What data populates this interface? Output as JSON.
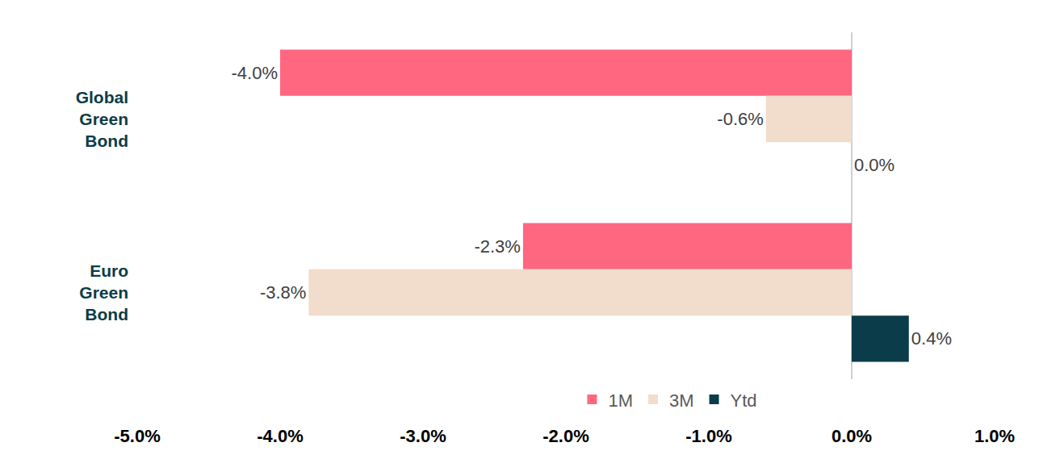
{
  "chart_data": {
    "type": "bar",
    "orientation": "horizontal",
    "categories": [
      "Global Green Bond",
      "Euro Green Bond"
    ],
    "series": [
      {
        "name": "1M",
        "color": "#FF6680",
        "values": [
          -4.0,
          -2.3
        ],
        "value_labels": [
          "-4.0%",
          "-2.3%"
        ]
      },
      {
        "name": "3M",
        "color": "#F2DCCB",
        "values": [
          -0.6,
          -3.8
        ],
        "value_labels": [
          "-0.6%",
          "-3.8%"
        ]
      },
      {
        "name": "Ytd",
        "color": "#0B3C49",
        "values": [
          0.0,
          0.4
        ],
        "value_labels": [
          "0.0%",
          "0.4%"
        ]
      }
    ],
    "xlim": [
      -5,
      1
    ],
    "xticks": [
      {
        "value": -5,
        "label": "-5.0%"
      },
      {
        "value": -4,
        "label": "-4.0%"
      },
      {
        "value": -3,
        "label": "-3.0%"
      },
      {
        "value": -2,
        "label": "-2.0%"
      },
      {
        "value": -1,
        "label": "-1.0%"
      },
      {
        "value": 0,
        "label": "0.0%"
      },
      {
        "value": 1,
        "label": "1.0%"
      }
    ],
    "grid": false,
    "legend": "bottom",
    "data_labels": true
  }
}
